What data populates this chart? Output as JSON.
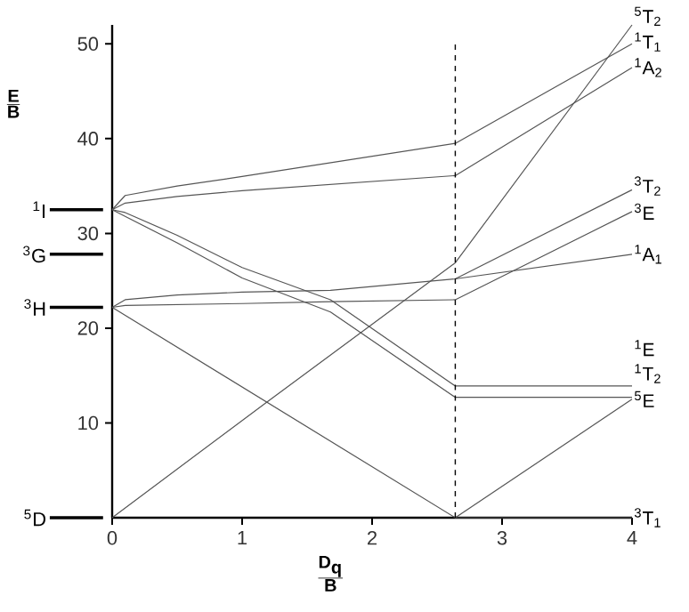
{
  "chart_data": {
    "type": "line",
    "xlabel": "\\frac{\\textbf{D}_{\\textbf{q}}}{\\textbf{B}}",
    "ylabel": "\\frac{\\textbf{E}}{\\textbf{B}}",
    "xlim": [
      0,
      4
    ],
    "ylim": [
      0,
      52
    ],
    "xticks": [
      0,
      1,
      2,
      3,
      4
    ],
    "yticks": [
      10,
      20,
      30,
      40,
      50
    ],
    "series": [
      {
        "name": "$^{5}$T$_{2}$",
        "color": "#555555",
        "x": [
          0,
          1.17,
          2.64,
          4
        ],
        "values": [
          0,
          12,
          26.9,
          52
        ]
      },
      {
        "name": "$^{1}$T$_{1}$",
        "color": "#555555",
        "x": [
          0,
          0.1,
          0.5,
          1,
          2.64,
          4
        ],
        "values": [
          32.5,
          34,
          35,
          36,
          39.5,
          50
        ]
      },
      {
        "name": "$^{1}$A$_{2}$",
        "color": "#555555",
        "x": [
          0,
          0.1,
          0.5,
          1,
          2.64,
          4
        ],
        "values": [
          32.5,
          33.2,
          33.9,
          34.5,
          36.1,
          47.5
        ]
      },
      {
        "name": "$^{3}$T$_{2}$",
        "color": "#555555",
        "x": [
          2.64,
          4
        ],
        "values": [
          25.2,
          34.6
        ]
      },
      {
        "name": "$^{3}$E",
        "color": "#555555",
        "x": [
          0,
          0.1,
          1,
          1.68,
          2.64,
          4
        ],
        "values": [
          22.2,
          22.4,
          22.6,
          22.8,
          23,
          32.3
        ]
      },
      {
        "name": "$^{1}$A$_{1}$",
        "color": "#555555",
        "x": [
          0,
          0.1,
          0.5,
          1,
          1.68,
          2.64,
          4
        ],
        "values": [
          22.2,
          23,
          23.5,
          23.8,
          24,
          25.2,
          27.8
        ]
      },
      {
        "name": "$^{1}$E",
        "color": "#555555",
        "x": [
          0,
          0.1,
          0.5,
          1,
          1.68,
          2.64,
          4
        ],
        "values": [
          32.5,
          32.2,
          29.8,
          26.4,
          23,
          13.9,
          13.9
        ]
      },
      {
        "name": "$^{1}$T$_{2}$",
        "color": "#555555",
        "x": [
          0,
          0.1,
          0.5,
          1,
          1.68,
          2.64,
          4
        ],
        "values": [
          32.5,
          31.8,
          29,
          25.3,
          21.7,
          12.7,
          12.7
        ]
      },
      {
        "name": "$^{5}$E",
        "color": "#555555",
        "x": [
          2.64,
          4
        ],
        "values": [
          0,
          12.5
        ]
      },
      {
        "name": "$^{3}$T$_{1}$",
        "color": "#555555",
        "x": [
          0,
          2.64,
          4
        ],
        "values": [
          22.2,
          0,
          0
        ]
      }
    ],
    "ref_lines": [
      {
        "axis": "x",
        "value": 2.64,
        "color": "#000000",
        "line_style": "dashed"
      },
      {
        "axis": "y",
        "value": 32.5,
        "label": "$^{1}$I",
        "color": "#000000"
      },
      {
        "axis": "y",
        "value": 27.8,
        "label": "$^{3}$G",
        "color": "#000000"
      },
      {
        "axis": "y",
        "value": 22.2,
        "label": "$^{3}$H",
        "color": "#000000"
      },
      {
        "axis": "y",
        "value": 0,
        "label": "$^{5}$D",
        "color": "#000000"
      }
    ]
  }
}
